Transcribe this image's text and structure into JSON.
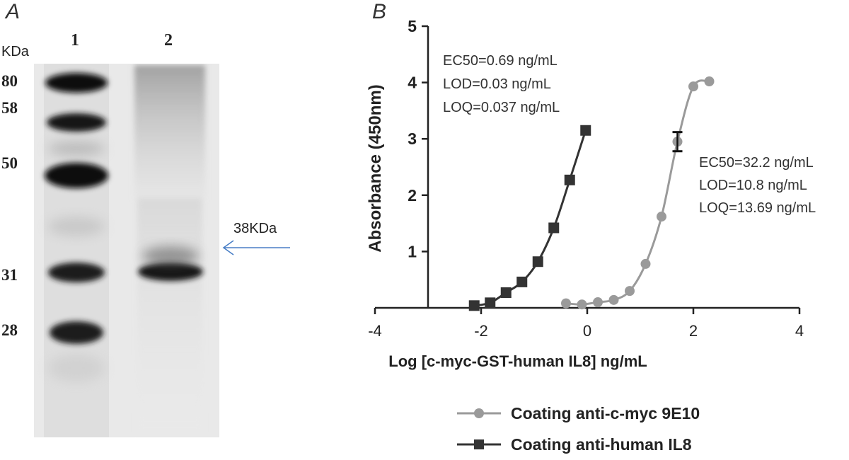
{
  "panel_a": {
    "letter": "A",
    "lane_labels": [
      "1",
      "2"
    ],
    "unit": "KDa",
    "markers": [
      "80",
      "58",
      "50",
      "31",
      "28"
    ],
    "arrow_label": "38KDa",
    "arrow_color": "#4a7fc6"
  },
  "panel_b": {
    "letter": "B",
    "annotations": {
      "left": [
        "EC50=0.69 ng/mL",
        "LOD=0.03 ng/mL",
        "LOQ=0.037 ng/mL"
      ],
      "right": [
        "EC50=32.2 ng/mL",
        "LOD=10.8 ng/mL",
        "LOQ=13.69 ng/mL"
      ]
    }
  },
  "chart_data": {
    "type": "line",
    "title": "",
    "xlabel": "Log [c-myc-GST-human IL8] ng/mL",
    "ylabel": "Absorbance (450nm)",
    "xlim": [
      -4,
      4
    ],
    "ylim": [
      0,
      5
    ],
    "xticks": [
      -4,
      -2,
      0,
      2,
      4
    ],
    "xtick_labels": [
      "-4",
      "-2",
      "0",
      "2",
      "4"
    ],
    "yticks": [
      1,
      2,
      3,
      4,
      5
    ],
    "ytick_labels": [
      "1",
      "2",
      "3",
      "4",
      "5"
    ],
    "grid": false,
    "legend_position": "bottom",
    "series": [
      {
        "name": "Coating anti-c-myc 9E10",
        "marker": "circle",
        "color": "#9a9a9a",
        "x": [
          -0.4,
          -0.1,
          0.2,
          0.5,
          0.8,
          1.1,
          1.4,
          1.7,
          2.0,
          2.3
        ],
        "y": [
          0.08,
          0.06,
          0.1,
          0.14,
          0.3,
          0.78,
          1.62,
          2.95,
          3.93,
          4.02
        ]
      },
      {
        "name": "Coating anti-human IL8",
        "marker": "square",
        "color": "#333333",
        "x": [
          -2.13,
          -1.83,
          -1.53,
          -1.23,
          -0.93,
          -0.63,
          -0.33,
          -0.03
        ],
        "y": [
          0.04,
          0.09,
          0.27,
          0.46,
          0.82,
          1.42,
          2.27,
          3.15
        ]
      }
    ]
  }
}
